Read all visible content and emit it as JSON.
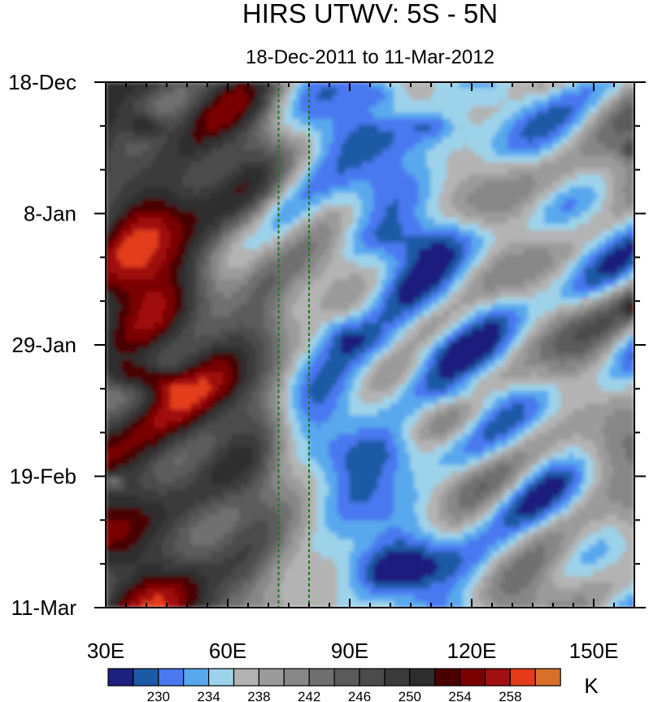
{
  "chart_data": {
    "type": "heatmap",
    "title": "HIRS UTWV: 5S - 5N",
    "subtitle": "18-Dec-2011 to 11-Mar-2012",
    "x_axis": {
      "range": [
        30,
        160
      ],
      "ticks": [
        30,
        60,
        90,
        120,
        150
      ],
      "tick_labels": [
        "30E",
        "60E",
        "90E",
        "120E",
        "150E"
      ]
    },
    "y_axis": {
      "range_days": [
        0,
        84
      ],
      "ticks_days": [
        0,
        21,
        42,
        63,
        84
      ],
      "tick_labels": [
        "18-Dec",
        "8-Jan",
        "29-Jan",
        "19-Feb",
        "11-Mar"
      ],
      "direction": "top-to-bottom"
    },
    "reference_lines_lon": [
      72.5,
      80
    ],
    "colorbar": {
      "unit": "K",
      "labels": [
        "230",
        "234",
        "238",
        "242",
        "246",
        "250",
        "254",
        "258"
      ],
      "label_levels": [
        230,
        234,
        238,
        242,
        246,
        250,
        254,
        258
      ],
      "levels": [
        228,
        230,
        232,
        234,
        236,
        238,
        240,
        242,
        244,
        246,
        248,
        250,
        252,
        254,
        256,
        258,
        260
      ],
      "colors": [
        "#1c1f7e",
        "#1c5aa6",
        "#4a78f0",
        "#58a8ee",
        "#9dd3ea",
        "#b3b3b3",
        "#9b9b9b",
        "#878787",
        "#6f6f6f",
        "#5b5b5b",
        "#4b4b4b",
        "#3b3b3b",
        "#2d2d2d",
        "#4a0000",
        "#7a0000",
        "#a01010",
        "#e43c1a",
        "#d9702a"
      ]
    },
    "field_description_scale_K": {
      "west_of_70E": "dry, 244-252 K with pockets up to 256 K near 35-45E",
      "east_of_75E": "moist, 230-240 K with minima near 85-120E"
    }
  }
}
